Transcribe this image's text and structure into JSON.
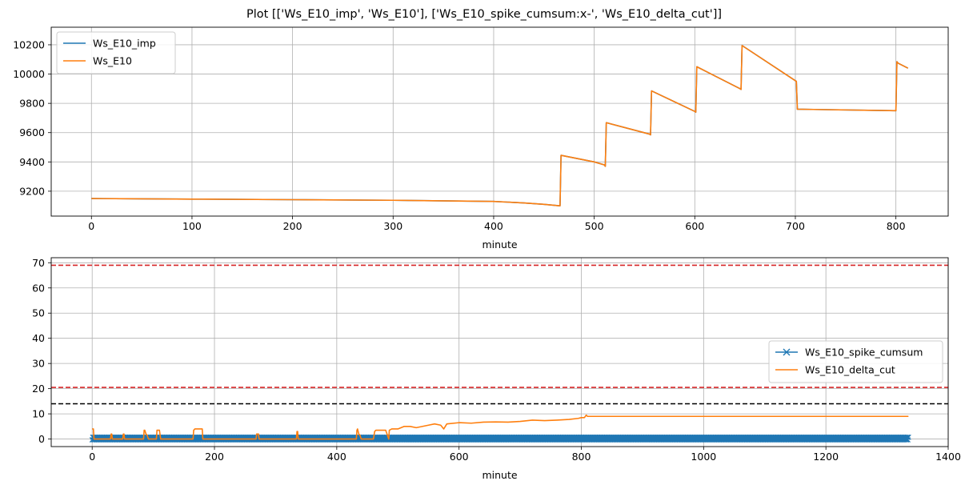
{
  "figure_title": "Plot [['Ws_E10_imp', 'Ws_E10'], ['Ws_E10_spike_cumsum:x-', 'Ws_E10_delta_cut']]",
  "colors": {
    "blue": "#1f77b4",
    "orange": "#ff7f0e",
    "red": "#d62728",
    "black": "#000000",
    "grid": "#b0b0b0"
  },
  "chart_data": [
    {
      "type": "line",
      "title": "",
      "xlabel": "minute",
      "ylabel": "",
      "xlim": [
        -40,
        852
      ],
      "ylim": [
        9030,
        10320
      ],
      "xticks": [
        0,
        100,
        200,
        300,
        400,
        500,
        600,
        700,
        800
      ],
      "yticks": [
        9200,
        9400,
        9600,
        9800,
        10000,
        10200
      ],
      "grid": true,
      "legend": "top-left",
      "series": [
        {
          "name": "Ws_E10_imp",
          "color": "#1f77b4",
          "x": [
            0,
            50,
            100,
            200,
            300,
            400,
            430,
            450,
            466,
            467,
            500,
            510,
            511,
            512,
            555,
            556,
            557,
            600,
            601,
            602,
            645,
            646,
            647,
            700,
            701,
            702,
            800,
            801,
            802,
            812
          ],
          "y": [
            9150,
            9148,
            9146,
            9142,
            9138,
            9130,
            9120,
            9110,
            9100,
            9445,
            9400,
            9380,
            9370,
            9668,
            9590,
            9585,
            9885,
            9745,
            9740,
            10050,
            9900,
            9895,
            10195,
            9955,
            9950,
            9760,
            9750,
            10085,
            10075,
            10040
          ]
        },
        {
          "name": "Ws_E10",
          "color": "#ff7f0e",
          "x": [
            0,
            50,
            100,
            200,
            300,
            400,
            430,
            450,
            466,
            467,
            500,
            510,
            511,
            512,
            555,
            556,
            557,
            600,
            601,
            602,
            645,
            646,
            647,
            700,
            701,
            702,
            800,
            801,
            802,
            812
          ],
          "y": [
            9150,
            9148,
            9146,
            9142,
            9138,
            9130,
            9120,
            9110,
            9100,
            9445,
            9400,
            9380,
            9370,
            9668,
            9590,
            9585,
            9885,
            9745,
            9740,
            10050,
            9900,
            9895,
            10195,
            9955,
            9950,
            9760,
            9750,
            10085,
            10075,
            10040
          ]
        }
      ]
    },
    {
      "type": "line",
      "title": "",
      "xlabel": "minute",
      "ylabel": "",
      "xlim": [
        -67,
        1400
      ],
      "ylim": [
        -3,
        72
      ],
      "xticks": [
        0,
        200,
        400,
        600,
        800,
        1000,
        1200,
        1400
      ],
      "yticks": [
        0,
        10,
        20,
        30,
        40,
        50,
        60,
        70
      ],
      "grid": true,
      "legend": "center-right",
      "hlines": [
        {
          "y": 69,
          "color": "#d62728",
          "style": "dashed"
        },
        {
          "y": 20.5,
          "color": "#d62728",
          "style": "dashed"
        },
        {
          "y": 14,
          "color": "#000000",
          "style": "dashed"
        }
      ],
      "series": [
        {
          "name": "Ws_E10_spike_cumsum",
          "color": "#1f77b4",
          "marker": "x",
          "x_range": [
            0,
            1335
          ],
          "values_alternate": [
            -0.3,
            0.7
          ]
        },
        {
          "name": "Ws_E10_delta_cut",
          "color": "#ff7f0e",
          "x": [
            0,
            2,
            3,
            5,
            6,
            25,
            30,
            31,
            32,
            33,
            50,
            51,
            52,
            53,
            84,
            85,
            86,
            88,
            90,
            92,
            105,
            106,
            107,
            110,
            112,
            165,
            166,
            168,
            175,
            180,
            181,
            268,
            269,
            270,
            272,
            273,
            334,
            335,
            336,
            337,
            432,
            433,
            434,
            436,
            438,
            440,
            460,
            462,
            464,
            466,
            470,
            480,
            485,
            486,
            490,
            500,
            510,
            520,
            530,
            550,
            560,
            570,
            575,
            580,
            600,
            620,
            640,
            660,
            680,
            700,
            720,
            740,
            760,
            780,
            795,
            800,
            805,
            808,
            810,
            812,
            1335
          ],
          "y": [
            4,
            4,
            0,
            0,
            0,
            0,
            0,
            2,
            2,
            0,
            0,
            2,
            2,
            0,
            0,
            3.5,
            3.5,
            2,
            1.5,
            0,
            0,
            3.5,
            3.5,
            3.5,
            0,
            0,
            3.5,
            4,
            4,
            4,
            0,
            0,
            2,
            2,
            2,
            0,
            0,
            3,
            3,
            0,
            0,
            3.5,
            4,
            2,
            1.5,
            0,
            0,
            3,
            3.5,
            3.5,
            3.5,
            3.5,
            0,
            3.5,
            4,
            4,
            5,
            5,
            4.5,
            5.5,
            6,
            5.5,
            4,
            6,
            6.5,
            6.3,
            6.7,
            6.8,
            6.7,
            7,
            7.5,
            7.3,
            7.5,
            7.8,
            8.2,
            8.5,
            8.5,
            9.5,
            9,
            9,
            9
          ]
        }
      ]
    }
  ]
}
